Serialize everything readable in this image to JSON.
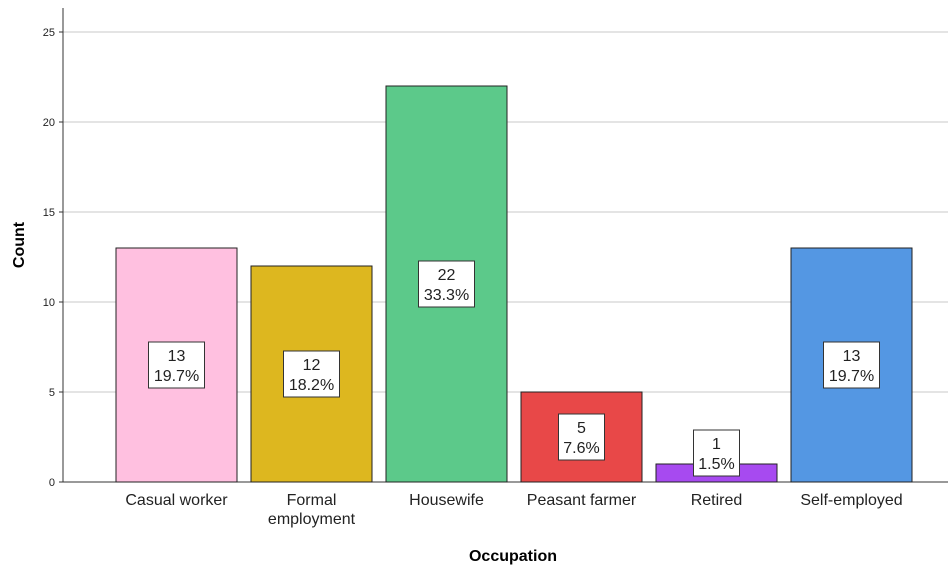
{
  "chart_data": {
    "type": "bar",
    "title": "",
    "xlabel": "Occupation",
    "ylabel": "Count",
    "ylim": [
      0,
      25
    ],
    "yticks": [
      0,
      5,
      10,
      15,
      20,
      25
    ],
    "grid": "horizontal",
    "categories": [
      "Casual worker",
      "Formal employment",
      "Housewife",
      "Peasant farmer",
      "Retired",
      "Self-employed"
    ],
    "values": [
      13,
      12,
      22,
      5,
      1,
      13
    ],
    "percent_labels": [
      "19.7%",
      "18.2%",
      "33.3%",
      "7.6%",
      "1.5%",
      "19.7%"
    ],
    "colors": [
      "#FFC0E0",
      "#DDB71F",
      "#5CC98A",
      "#E84848",
      "#A74AF0",
      "#5497E3"
    ]
  }
}
